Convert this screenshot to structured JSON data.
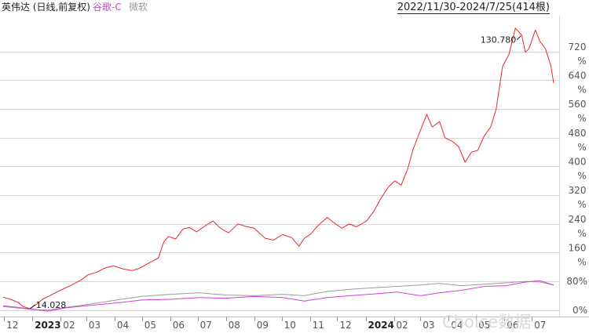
{
  "header": {
    "series_1_label": "英伟达 (日线,前复权)",
    "series_2_label": "谷歌-C",
    "series_3_label": "微软",
    "date_range": "2022/11/30-2024/7/25(414根)"
  },
  "watermark": "Choice数据",
  "colors": {
    "nvidia": "#e8262b",
    "google": "#d33ed3",
    "microsoft": "#9a9a9a",
    "grid": "#d5d5d5"
  },
  "chart_data": {
    "type": "line",
    "y_unit": "%",
    "ylim": [
      -18,
      820
    ],
    "y_ticks": [
      "720",
      "640",
      "560",
      "480",
      "400",
      "320",
      "240",
      "160",
      "80%",
      "0%"
    ],
    "x_ticks": [
      "12",
      "2023",
      "02",
      "03",
      "04",
      "05",
      "06",
      "07",
      "08",
      "09",
      "10",
      "11",
      "12",
      "2024",
      "02",
      "03",
      "04",
      "05",
      "06",
      "07"
    ],
    "annotations": [
      {
        "text": "130.780",
        "x": "2024-06-20",
        "y": 766
      },
      {
        "text": "14.028",
        "x": "2022-12-29",
        "y": 2
      }
    ],
    "series": [
      {
        "name": "英伟达",
        "x": [
          "2022-11-30",
          "2022-12-08",
          "2022-12-16",
          "2022-12-22",
          "2022-12-29",
          "2023-01-05",
          "2023-01-12",
          "2023-01-20",
          "2023-01-26",
          "2023-02-03",
          "2023-02-13",
          "2023-02-23",
          "2023-03-03",
          "2023-03-13",
          "2023-03-22",
          "2023-03-31",
          "2023-04-10",
          "2023-04-20",
          "2023-04-28",
          "2023-05-10",
          "2023-05-19",
          "2023-05-25",
          "2023-05-30",
          "2023-06-07",
          "2023-06-15",
          "2023-06-22",
          "2023-06-30",
          "2023-07-10",
          "2023-07-18",
          "2023-07-26",
          "2023-08-04",
          "2023-08-14",
          "2023-08-24",
          "2023-09-01",
          "2023-09-13",
          "2023-09-22",
          "2023-10-02",
          "2023-10-12",
          "2023-10-20",
          "2023-10-26",
          "2023-11-02",
          "2023-11-10",
          "2023-11-20",
          "2023-11-28",
          "2023-12-06",
          "2023-12-14",
          "2023-12-22",
          "2024-01-02",
          "2024-01-10",
          "2024-01-18",
          "2024-01-26",
          "2024-02-02",
          "2024-02-09",
          "2024-02-16",
          "2024-02-22",
          "2024-03-01",
          "2024-03-08",
          "2024-03-14",
          "2024-03-22",
          "2024-03-28",
          "2024-04-05",
          "2024-04-12",
          "2024-04-19",
          "2024-04-26",
          "2024-05-03",
          "2024-05-10",
          "2024-05-17",
          "2024-05-23",
          "2024-05-30",
          "2024-06-06",
          "2024-06-13",
          "2024-06-20",
          "2024-06-24",
          "2024-06-28",
          "2024-07-05",
          "2024-07-10",
          "2024-07-16",
          "2024-07-22",
          "2024-07-25"
        ],
        "y": [
          36,
          30,
          22,
          10,
          4,
          15,
          30,
          40,
          48,
          58,
          70,
          83,
          98,
          106,
          118,
          123,
          115,
          110,
          116,
          133,
          145,
          190,
          205,
          198,
          226,
          230,
          218,
          236,
          248,
          228,
          215,
          240,
          232,
          228,
          200,
          195,
          210,
          202,
          178,
          200,
          212,
          236,
          258,
          242,
          228,
          240,
          232,
          248,
          275,
          312,
          343,
          360,
          348,
          392,
          448,
          500,
          545,
          510,
          525,
          480,
          470,
          455,
          412,
          440,
          445,
          485,
          510,
          560,
          678,
          712,
          785,
          766,
          718,
          728,
          780,
          748,
          728,
          680,
          632
        ]
      },
      {
        "name": "谷歌-C",
        "x": [
          "2022-11-30",
          "2022-12-15",
          "2023-01-03",
          "2023-01-18",
          "2023-02-06",
          "2023-03-01",
          "2023-04-03",
          "2023-05-01",
          "2023-06-01",
          "2023-07-03",
          "2023-08-01",
          "2023-09-01",
          "2023-10-02",
          "2023-10-26",
          "2023-11-20",
          "2023-12-15",
          "2024-01-10",
          "2024-02-05",
          "2024-03-01",
          "2024-03-22",
          "2024-04-15",
          "2024-05-10",
          "2024-06-03",
          "2024-06-24",
          "2024-07-10",
          "2024-07-25"
        ],
        "y": [
          12,
          8,
          2,
          -3,
          6,
          12,
          20,
          28,
          30,
          35,
          33,
          38,
          35,
          25,
          35,
          40,
          45,
          50,
          40,
          48,
          55,
          66,
          68,
          78,
          82,
          70
        ]
      },
      {
        "name": "微软",
        "x": [
          "2022-11-30",
          "2022-12-15",
          "2023-01-03",
          "2023-01-18",
          "2023-02-06",
          "2023-03-01",
          "2023-04-03",
          "2023-05-01",
          "2023-06-01",
          "2023-07-03",
          "2023-08-01",
          "2023-09-01",
          "2023-10-02",
          "2023-10-26",
          "2023-11-20",
          "2023-12-15",
          "2024-01-10",
          "2024-02-05",
          "2024-03-01",
          "2024-03-22",
          "2024-04-15",
          "2024-05-10",
          "2024-06-03",
          "2024-06-24",
          "2024-07-10",
          "2024-07-25"
        ],
        "y": [
          10,
          6,
          1,
          0,
          7,
          15,
          28,
          38,
          44,
          48,
          42,
          40,
          44,
          40,
          52,
          58,
          62,
          66,
          70,
          74,
          68,
          72,
          76,
          80,
          78,
          70
        ]
      }
    ]
  }
}
